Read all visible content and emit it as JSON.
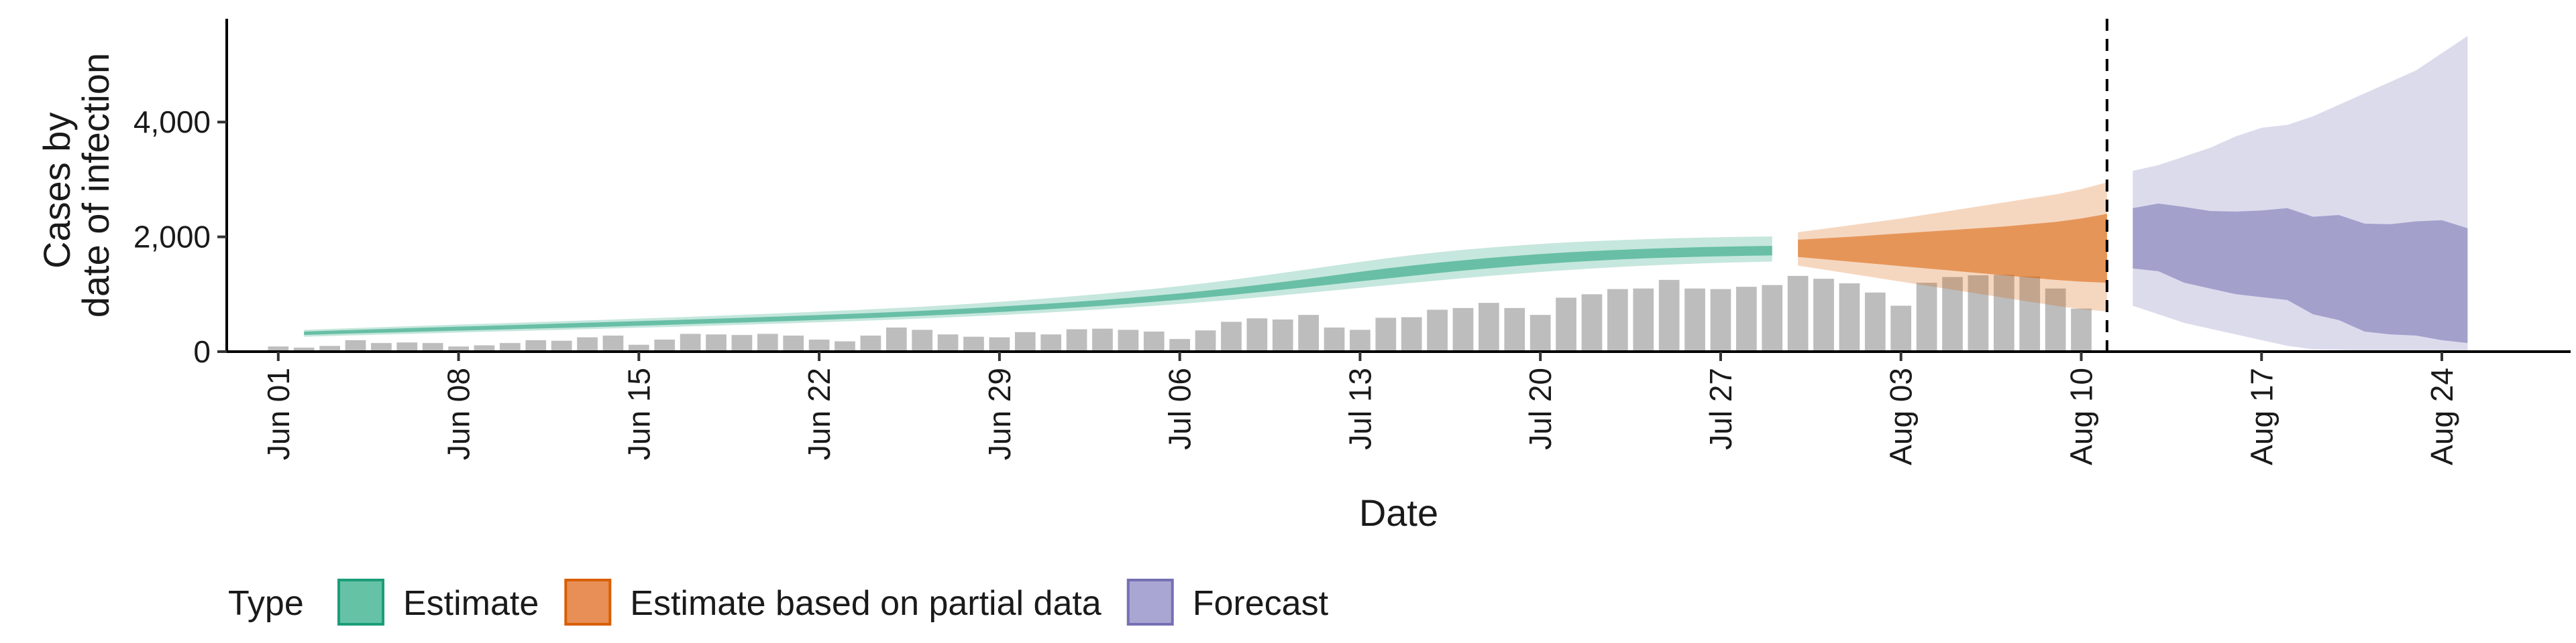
{
  "chart_data": {
    "type": "bar+ribbon",
    "xlabel": "Date",
    "ylabel": [
      "Cases by",
      "date of infection"
    ],
    "ylim": [
      0,
      5800
    ],
    "y_ticks": [
      0,
      2000,
      4000
    ],
    "y_tick_labels": [
      "0",
      "2,000",
      "4,000"
    ],
    "x_range": [
      "2020-05-30",
      "2020-08-29"
    ],
    "x_ticks": [
      "2020-06-01",
      "2020-06-08",
      "2020-06-15",
      "2020-06-22",
      "2020-06-29",
      "2020-07-06",
      "2020-07-13",
      "2020-07-20",
      "2020-07-27",
      "2020-08-03",
      "2020-08-10",
      "2020-08-17",
      "2020-08-24"
    ],
    "x_tick_labels": [
      "Jun 01",
      "Jun 08",
      "Jun 15",
      "Jun 22",
      "Jun 29",
      "Jul 06",
      "Jul 13",
      "Jul 20",
      "Jul 27",
      "Aug 03",
      "Aug 10",
      "Aug 17",
      "Aug 24"
    ],
    "forecast_cutoff": "2020-08-11",
    "grid": false,
    "legend": {
      "title": "Type",
      "position": "bottom",
      "entries": [
        {
          "label": "Estimate",
          "fill": "#66C2A5",
          "stroke": "#1B9E77"
        },
        {
          "label": "Estimate based on partial data",
          "fill": "#E78F56",
          "stroke": "#D95F02"
        },
        {
          "label": "Forecast",
          "fill": "#A9A6D3",
          "stroke": "#7570B3"
        }
      ]
    },
    "reported_cases": {
      "color": "#BDBDBD",
      "start_date": "2020-06-01",
      "values": [
        90,
        70,
        100,
        200,
        150,
        160,
        150,
        90,
        110,
        150,
        200,
        190,
        250,
        280,
        120,
        210,
        310,
        300,
        290,
        310,
        280,
        210,
        180,
        280,
        420,
        380,
        300,
        260,
        250,
        340,
        300,
        390,
        400,
        380,
        350,
        220,
        370,
        520,
        580,
        560,
        640,
        420,
        380,
        590,
        600,
        730,
        760,
        850,
        760,
        640,
        940,
        1000,
        1090,
        1100,
        1250,
        1100,
        1090,
        1130,
        1160,
        1320,
        1270,
        1190,
        1030,
        800,
        1200,
        1300,
        1330,
        1340,
        1310,
        1100,
        750
      ]
    },
    "series": [
      {
        "name": "Estimate",
        "color": "#1B9E77",
        "start_date": "2020-06-02",
        "median": [
          320,
          335,
          350,
          362,
          375,
          388,
          400,
          412,
          425,
          438,
          450,
          463,
          476,
          490,
          503,
          518,
          532,
          547,
          562,
          578,
          594,
          611,
          629,
          648,
          668,
          690,
          712,
          736,
          762,
          790,
          820,
          852,
          887,
          925,
          965,
          1008,
          1054,
          1102,
          1152,
          1204,
          1258,
          1312,
          1366,
          1418,
          1468,
          1516,
          1560,
          1600,
          1636,
          1668,
          1696,
          1720,
          1740,
          1756,
          1770,
          1782,
          1790,
          1796
        ],
        "inner_lower": [
          290,
          305,
          318,
          330,
          342,
          354,
          366,
          378,
          390,
          402,
          414,
          426,
          438,
          452,
          465,
          480,
          494,
          508,
          522,
          537,
          553,
          570,
          587,
          605,
          624,
          645,
          667,
          690,
          715,
          742,
          770,
          800,
          833,
          868,
          905,
          945,
          988,
          1033,
          1080,
          1128,
          1176,
          1225,
          1272,
          1320,
          1368,
          1412,
          1452,
          1490,
          1524,
          1555,
          1582,
          1605,
          1625,
          1640,
          1652,
          1662,
          1670,
          1676
        ],
        "inner_upper": [
          350,
          365,
          380,
          394,
          408,
          422,
          436,
          448,
          462,
          476,
          490,
          504,
          518,
          532,
          546,
          560,
          575,
          590,
          606,
          622,
          638,
          655,
          672,
          691,
          712,
          735,
          759,
          785,
          812,
          840,
          870,
          902,
          937,
          975,
          1015,
          1060,
          1108,
          1160,
          1214,
          1270,
          1330,
          1390,
          1448,
          1500,
          1548,
          1592,
          1632,
          1668,
          1700,
          1728,
          1752,
          1772,
          1790,
          1805,
          1818,
          1828,
          1836,
          1842
        ],
        "outer_lower": [
          260,
          272,
          284,
          296,
          308,
          320,
          332,
          344,
          356,
          368,
          380,
          392,
          404,
          416,
          428,
          440,
          454,
          468,
          482,
          496,
          511,
          526,
          542,
          559,
          577,
          596,
          616,
          637,
          660,
          684,
          710,
          738,
          767,
          798,
          831,
          866,
          903,
          942,
          983,
          1025,
          1068,
          1112,
          1155,
          1198,
          1240,
          1280,
          1318,
          1354,
          1388,
          1420,
          1448,
          1474,
          1496,
          1516,
          1533,
          1548,
          1560,
          1570
        ],
        "outer_upper": [
          380,
          396,
          412,
          427,
          442,
          457,
          472,
          486,
          500,
          515,
          530,
          545,
          560,
          576,
          592,
          608,
          625,
          642,
          660,
          678,
          697,
          717,
          738,
          760,
          784,
          810,
          838,
          868,
          900,
          934,
          970,
          1008,
          1050,
          1094,
          1142,
          1194,
          1250,
          1310,
          1372,
          1436,
          1500,
          1564,
          1624,
          1680,
          1730,
          1774,
          1812,
          1846,
          1876,
          1902,
          1924,
          1942,
          1958,
          1972,
          1984,
          1994,
          2002,
          2008
        ]
      },
      {
        "name": "Estimate based on partial data",
        "color": "#D95F02",
        "start_date": "2020-07-30",
        "median": [
          1800,
          1815,
          1830,
          1845,
          1860,
          1875,
          1890,
          1905,
          1920,
          1935,
          1950,
          1965,
          1980
        ],
        "inner_lower": [
          1650,
          1610,
          1570,
          1530,
          1490,
          1450,
          1410,
          1370,
          1330,
          1290,
          1250,
          1220,
          1200
        ],
        "inner_upper": [
          1950,
          1975,
          2000,
          2030,
          2060,
          2090,
          2120,
          2150,
          2180,
          2220,
          2260,
          2320,
          2400
        ],
        "outer_lower": [
          1500,
          1430,
          1360,
          1290,
          1220,
          1150,
          1080,
          1010,
          940,
          870,
          800,
          740,
          700
        ],
        "outer_upper": [
          2080,
          2140,
          2200,
          2260,
          2320,
          2390,
          2460,
          2530,
          2600,
          2670,
          2740,
          2830,
          2950
        ]
      },
      {
        "name": "Forecast",
        "color": "#7570B3",
        "start_date": "2020-08-12",
        "median": [
          2000,
          2010,
          1950,
          1900,
          1890,
          1870,
          1850,
          1800,
          1720,
          1680,
          1660,
          1650,
          1620,
          1600
        ],
        "inner_lower": [
          1450,
          1400,
          1200,
          1100,
          1000,
          950,
          900,
          650,
          550,
          350,
          300,
          280,
          200,
          150
        ],
        "inner_upper": [
          2500,
          2580,
          2520,
          2450,
          2440,
          2460,
          2500,
          2350,
          2380,
          2230,
          2220,
          2270,
          2290,
          2150
        ],
        "outer_lower": [
          800,
          650,
          500,
          400,
          300,
          200,
          100,
          40,
          30,
          20,
          15,
          10,
          5,
          0
        ],
        "outer_upper": [
          3150,
          3250,
          3400,
          3550,
          3750,
          3900,
          3950,
          4100,
          4300,
          4500,
          4700,
          4900,
          5200,
          5500
        ]
      }
    ]
  }
}
